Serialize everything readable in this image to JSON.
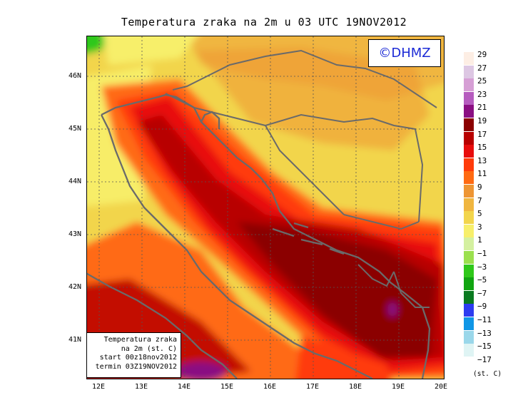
{
  "title": "Temperatura zraka na 2m u 03 UTC 19NOV2012",
  "logo": "©DHMZ",
  "info_box": {
    "line1": "Temperatura zraka",
    "line2": "na 2m (st. C)",
    "line3": "start 00z18nov2012",
    "line4": "termin 03Z19NOV2012"
  },
  "lat_labels": [
    "46N",
    "45N",
    "44N",
    "43N",
    "42N",
    "41N"
  ],
  "lon_labels": [
    "12E",
    "13E",
    "14E",
    "15E",
    "16E",
    "17E",
    "18E",
    "19E",
    "20E"
  ],
  "legend": {
    "units": "(st. C)",
    "labels": [
      "29",
      "27",
      "25",
      "23",
      "21",
      "19",
      "17",
      "15",
      "13",
      "11",
      "9",
      "7",
      "5",
      "3",
      "1",
      "−1",
      "−3",
      "−5",
      "−7",
      "−9",
      "−11",
      "−13",
      "−15",
      "−17"
    ],
    "colors": [
      "#fdeee4",
      "#ddc7e3",
      "#d69fd5",
      "#b65cbf",
      "#8a0e82",
      "#8b0000",
      "#b80000",
      "#e80c0c",
      "#ff3b0a",
      "#ff6a12",
      "#ee9533",
      "#f0b640",
      "#f2d54c",
      "#f7ef6b",
      "#d4f0a0",
      "#9be04e",
      "#2fc81a",
      "#11a511",
      "#0a7a20",
      "#2d3cf0",
      "#0f96e6",
      "#9ad7ea",
      "#dff4f4"
    ]
  }
}
